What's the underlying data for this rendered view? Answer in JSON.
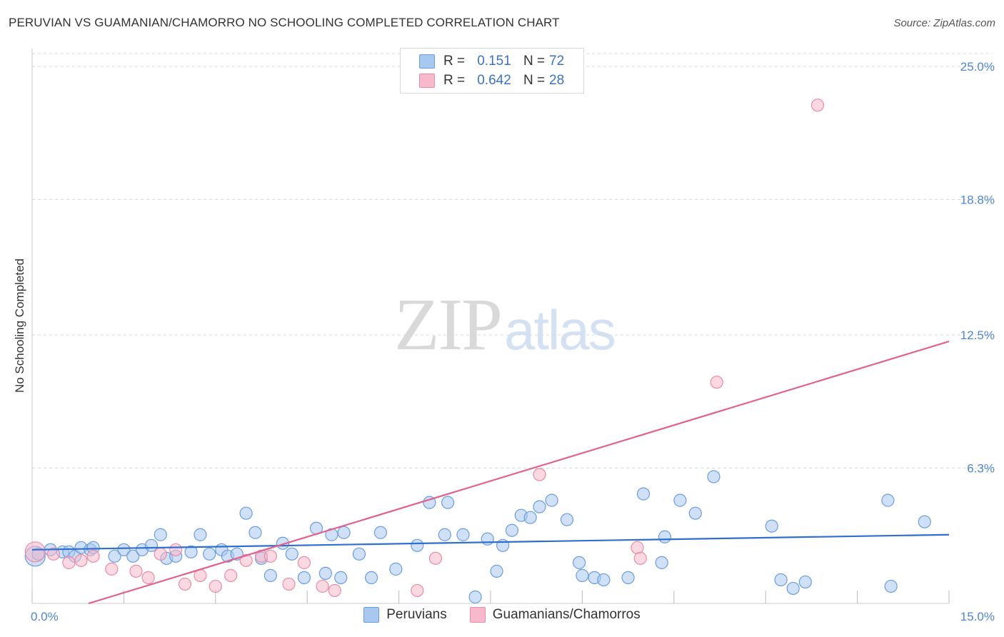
{
  "header": {
    "title": "PERUVIAN VS GUAMANIAN/CHAMORRO NO SCHOOLING COMPLETED CORRELATION CHART",
    "source": "Source: ZipAtlas.com"
  },
  "watermark": {
    "zip": "ZIP",
    "atlas": "atlas"
  },
  "legend": {
    "rows": [
      {
        "r_label": "R =",
        "r_value": "0.151",
        "n_label": "N =",
        "n_value": "72",
        "color": "#a9c8f0"
      },
      {
        "r_label": "R =",
        "r_value": "0.642",
        "n_label": "N =",
        "n_value": "28",
        "color": "#f7b9cb"
      }
    ]
  },
  "bottom_legend": {
    "peruvians": "Peruvians",
    "guamanians": "Guamanians/Chamorros"
  },
  "colors": {
    "peruvian_fill": "#a9c8f0",
    "peruvian_stroke": "#6a9de0",
    "peruvian_line": "#2f6fce",
    "guam_fill": "#f7b9cb",
    "guam_stroke": "#ec8aa8",
    "guam_line": "#e2628c",
    "axis_label": "#4f86d6",
    "grid": "#d9d9d9"
  },
  "chart_data": {
    "type": "scatter",
    "title": "PERUVIAN VS GUAMANIAN/CHAMORRO NO SCHOOLING COMPLETED CORRELATION CHART",
    "xlabel": "",
    "ylabel": "No Schooling Completed",
    "xlim": [
      0,
      15
    ],
    "ylim": [
      0,
      25.6
    ],
    "x_tick_labels": [
      "0.0%",
      "15.0%"
    ],
    "y_ticks": [
      6.3,
      12.5,
      18.8,
      25.0
    ],
    "y_tick_labels": [
      "6.3%",
      "12.5%",
      "18.8%",
      "25.0%"
    ],
    "grid": true,
    "series": [
      {
        "name": "Peruvians",
        "r": 0.151,
        "n": 72,
        "trend": {
          "x": [
            0,
            15
          ],
          "y": [
            2.5,
            3.2
          ]
        },
        "points": [
          [
            0.05,
            2.2
          ],
          [
            0.1,
            2.3
          ],
          [
            0.3,
            2.5
          ],
          [
            0.5,
            2.4
          ],
          [
            0.6,
            2.4
          ],
          [
            0.7,
            2.2
          ],
          [
            0.8,
            2.6
          ],
          [
            0.95,
            2.5
          ],
          [
            1.0,
            2.6
          ],
          [
            1.35,
            2.2
          ],
          [
            1.5,
            2.5
          ],
          [
            1.65,
            2.2
          ],
          [
            1.8,
            2.5
          ],
          [
            1.95,
            2.7
          ],
          [
            2.1,
            3.2
          ],
          [
            2.2,
            2.1
          ],
          [
            2.35,
            2.2
          ],
          [
            2.6,
            2.4
          ],
          [
            2.75,
            3.2
          ],
          [
            2.9,
            2.3
          ],
          [
            3.1,
            2.5
          ],
          [
            3.2,
            2.2
          ],
          [
            3.35,
            2.3
          ],
          [
            3.5,
            4.2
          ],
          [
            3.65,
            3.3
          ],
          [
            3.75,
            2.1
          ],
          [
            3.9,
            1.3
          ],
          [
            4.1,
            2.8
          ],
          [
            4.25,
            2.3
          ],
          [
            4.45,
            1.2
          ],
          [
            4.65,
            3.5
          ],
          [
            4.8,
            1.4
          ],
          [
            4.9,
            3.2
          ],
          [
            5.05,
            1.2
          ],
          [
            5.1,
            3.3
          ],
          [
            5.35,
            2.3
          ],
          [
            5.55,
            1.2
          ],
          [
            5.7,
            3.3
          ],
          [
            5.95,
            1.6
          ],
          [
            6.3,
            2.7
          ],
          [
            6.5,
            4.7
          ],
          [
            6.75,
            3.2
          ],
          [
            6.8,
            4.7
          ],
          [
            7.05,
            3.2
          ],
          [
            7.25,
            0.3
          ],
          [
            7.45,
            3.0
          ],
          [
            7.6,
            1.5
          ],
          [
            7.7,
            2.7
          ],
          [
            7.85,
            3.4
          ],
          [
            8.0,
            4.1
          ],
          [
            8.15,
            4.0
          ],
          [
            8.3,
            4.5
          ],
          [
            8.5,
            4.8
          ],
          [
            8.75,
            3.9
          ],
          [
            8.95,
            1.9
          ],
          [
            9.0,
            1.3
          ],
          [
            9.2,
            1.2
          ],
          [
            9.35,
            1.1
          ],
          [
            9.75,
            1.2
          ],
          [
            10.0,
            5.1
          ],
          [
            10.3,
            1.9
          ],
          [
            10.35,
            3.1
          ],
          [
            10.6,
            4.8
          ],
          [
            10.85,
            4.2
          ],
          [
            11.15,
            5.9
          ],
          [
            12.1,
            3.6
          ],
          [
            12.25,
            1.1
          ],
          [
            12.45,
            0.7
          ],
          [
            12.65,
            1.0
          ],
          [
            14.0,
            4.8
          ],
          [
            14.05,
            0.8
          ],
          [
            14.6,
            3.8
          ]
        ]
      },
      {
        "name": "Guamanians/Chamorros",
        "r": 0.642,
        "n": 28,
        "trend": {
          "x": [
            0,
            15
          ],
          "y": [
            -0.8,
            12.2
          ]
        },
        "points": [
          [
            0.05,
            2.4
          ],
          [
            0.35,
            2.3
          ],
          [
            0.6,
            1.9
          ],
          [
            0.8,
            2.0
          ],
          [
            1.0,
            2.2
          ],
          [
            1.3,
            1.6
          ],
          [
            1.7,
            1.5
          ],
          [
            1.9,
            1.2
          ],
          [
            2.1,
            2.3
          ],
          [
            2.35,
            2.5
          ],
          [
            2.5,
            0.9
          ],
          [
            2.75,
            1.3
          ],
          [
            3.0,
            0.8
          ],
          [
            3.25,
            1.3
          ],
          [
            3.5,
            2.0
          ],
          [
            3.75,
            2.2
          ],
          [
            3.9,
            2.2
          ],
          [
            4.2,
            0.9
          ],
          [
            4.45,
            1.9
          ],
          [
            4.75,
            0.8
          ],
          [
            4.95,
            0.6
          ],
          [
            6.3,
            0.6
          ],
          [
            6.6,
            2.1
          ],
          [
            8.3,
            6.0
          ],
          [
            9.9,
            2.6
          ],
          [
            9.95,
            2.1
          ],
          [
            11.2,
            10.3
          ],
          [
            12.85,
            23.2
          ]
        ]
      }
    ]
  }
}
